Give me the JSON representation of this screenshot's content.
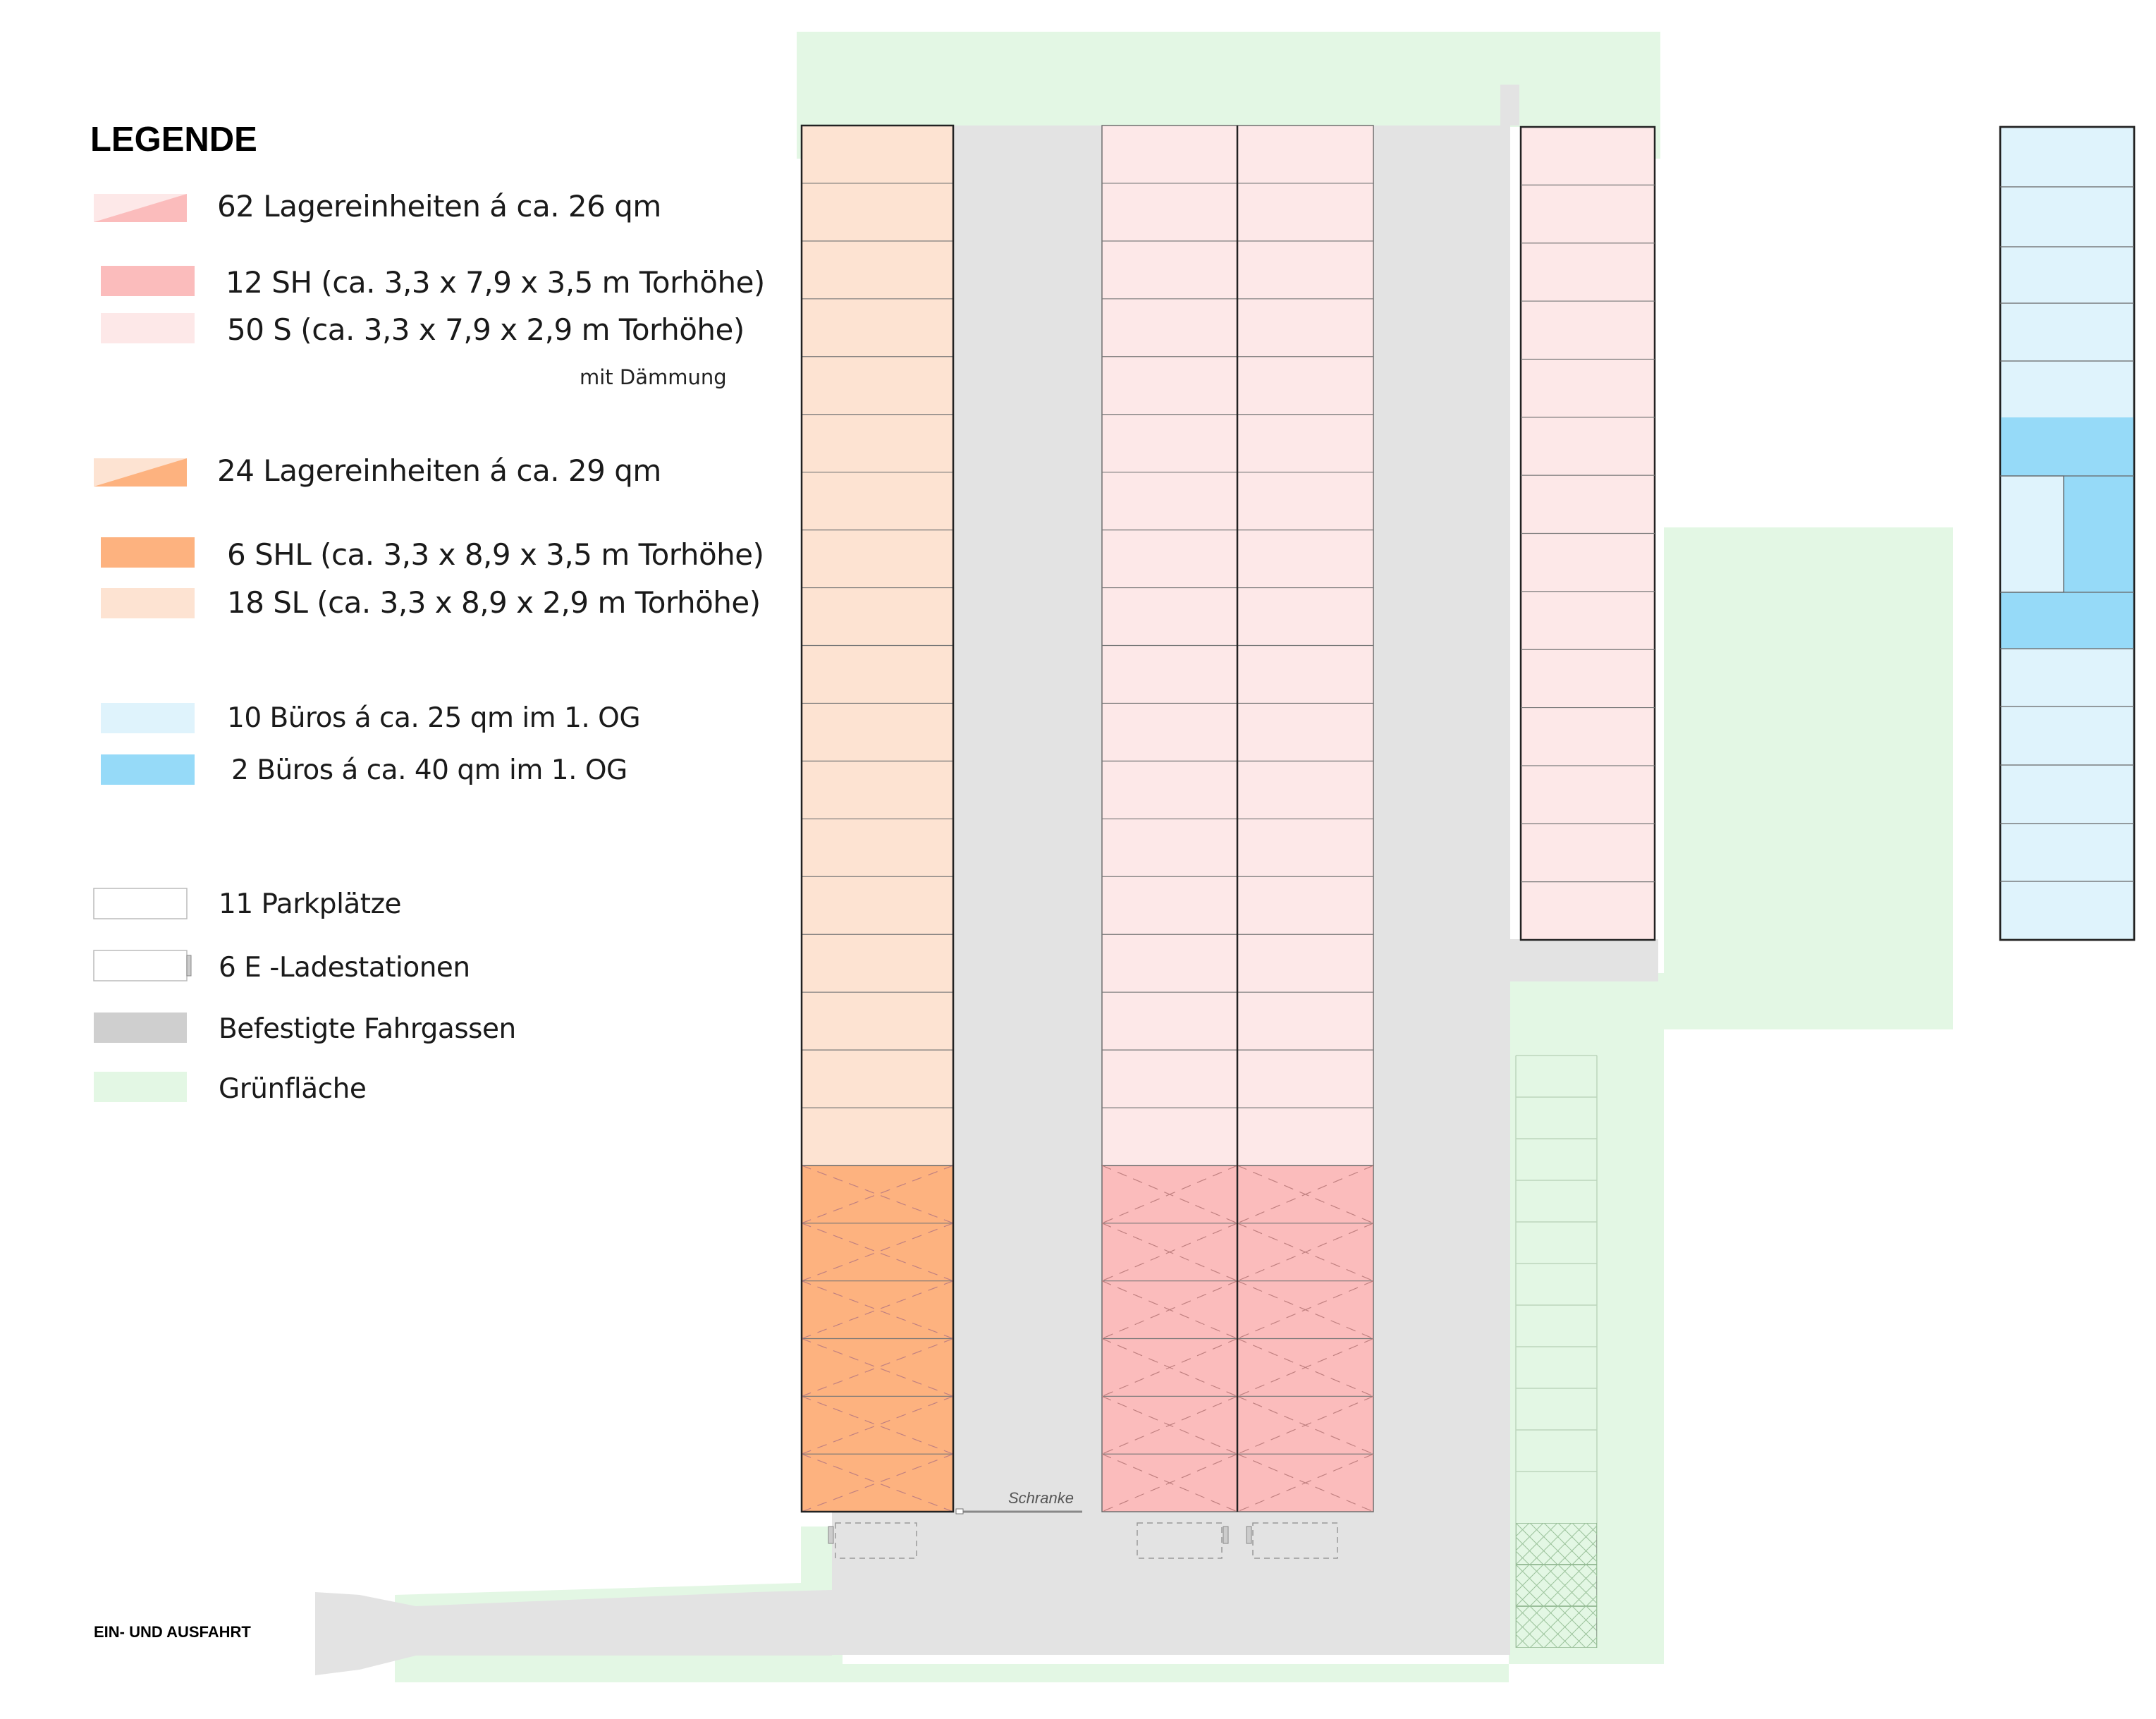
{
  "legend": {
    "title": "LEGENDE",
    "group_small": "62 Lagereinheiten á ca. 26 qm",
    "sh": "12 SH (ca. 3,3 x 7,9 x 3,5 m Torhöhe)",
    "s": "50 S (ca. 3,3 x 7,9 x 2,9 m Torhöhe)",
    "note_insulation": "mit Dämmung",
    "group_large": "24 Lagereinheiten á ca. 29 qm",
    "shl": "6 SHL (ca. 3,3 x 8,9 x 3,5 m Torhöhe)",
    "sl": "18 SL (ca. 3,3 x 8,9 x 2,9 m Torhöhe)",
    "offices_small": "10 Büros á ca. 25 qm im 1. OG",
    "offices_large": "2 Büros á ca. 40 qm im 1. OG",
    "parking": "11 Parkplätze",
    "charging": "6 E -Ladestationen",
    "roads": "Befestigte Fahrgassen",
    "green": "Grünfläche"
  },
  "labels": {
    "entrance": "EIN- UND AUSFAHRT",
    "barrier": "Schranke"
  },
  "colors": {
    "s_light_pink": "#fde8e8",
    "sh_pink": "#fbbcbc",
    "sl_light_orange": "#fde3d2",
    "shl_orange": "#fdb27f",
    "office_light_blue": "#dff3fc",
    "office_blue": "#96daf8",
    "road_grey": "#e3e3e3",
    "road_legend_grey": "#cfcfcf",
    "green_area": "#e3f7e4"
  }
}
